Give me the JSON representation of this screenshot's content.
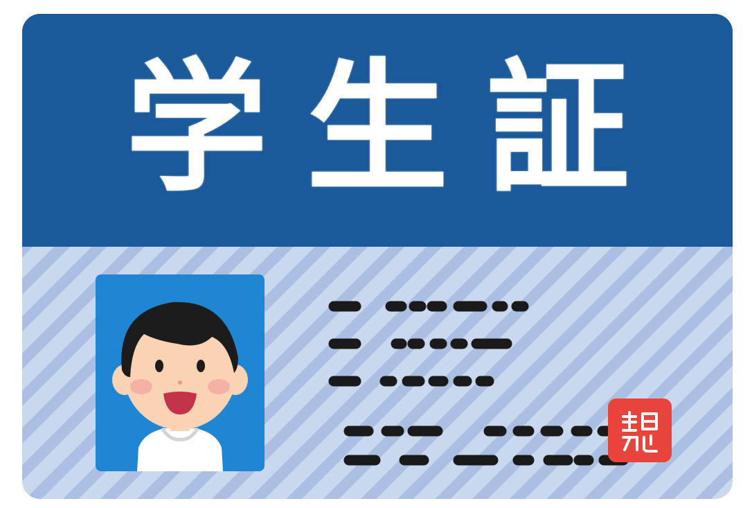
{
  "card": {
    "title": "学生証",
    "colors": {
      "header": "#1b5a9a",
      "body_stripe_light": "#c9d8ef",
      "body_stripe_dark": "#aabfe2",
      "photo_bg": "#1f86d4",
      "seal": "#e8443c",
      "redacted_text": "#1a1a1a"
    },
    "photo": {
      "icon": "student-portrait-icon"
    },
    "details": {
      "icon": "redacted-text-lines"
    },
    "seal": {
      "icon": "hanko-seal-icon"
    }
  }
}
